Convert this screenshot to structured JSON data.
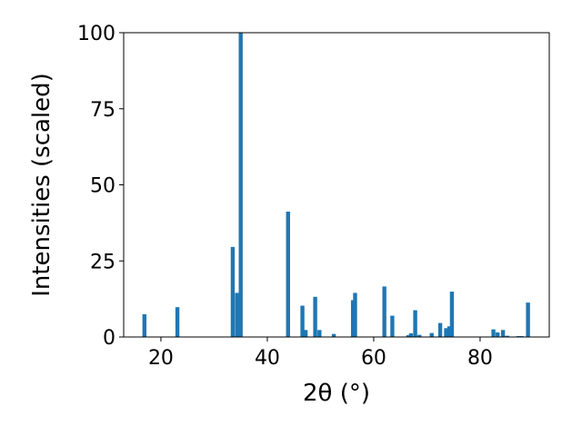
{
  "chart_data": {
    "type": "bar",
    "xlabel": "2θ (°)",
    "ylabel": "Intensities (scaled)",
    "xlim": [
      13,
      93
    ],
    "ylim": [
      0,
      100
    ],
    "x_ticks": [
      20,
      40,
      60,
      80
    ],
    "y_ticks": [
      0,
      25,
      50,
      75,
      100
    ],
    "grid": false,
    "legend": "none",
    "bar_color": "#1f77b4",
    "bar_width": 0.75,
    "x": [
      16.9,
      23.1,
      33.5,
      34.3,
      35.0,
      43.9,
      46.6,
      47.2,
      49.0,
      49.8,
      52.5,
      56.1,
      56.5,
      62.0,
      63.5,
      66.5,
      67.0,
      67.8,
      68.6,
      70.9,
      72.5,
      73.6,
      74.2,
      74.7,
      82.5,
      83.3,
      84.3,
      85.1,
      87.2,
      87.8,
      89.0
    ],
    "values": [
      7.5,
      9.8,
      29.6,
      14.5,
      100,
      41.2,
      10.3,
      2.3,
      13.2,
      2.3,
      1.0,
      12.1,
      14.5,
      16.6,
      7.0,
      0.6,
      1.2,
      8.8,
      0.7,
      1.3,
      4.6,
      2.9,
      3.5,
      14.9,
      2.5,
      1.5,
      2.3,
      0.4,
      0.3,
      0.3,
      11.3
    ]
  }
}
